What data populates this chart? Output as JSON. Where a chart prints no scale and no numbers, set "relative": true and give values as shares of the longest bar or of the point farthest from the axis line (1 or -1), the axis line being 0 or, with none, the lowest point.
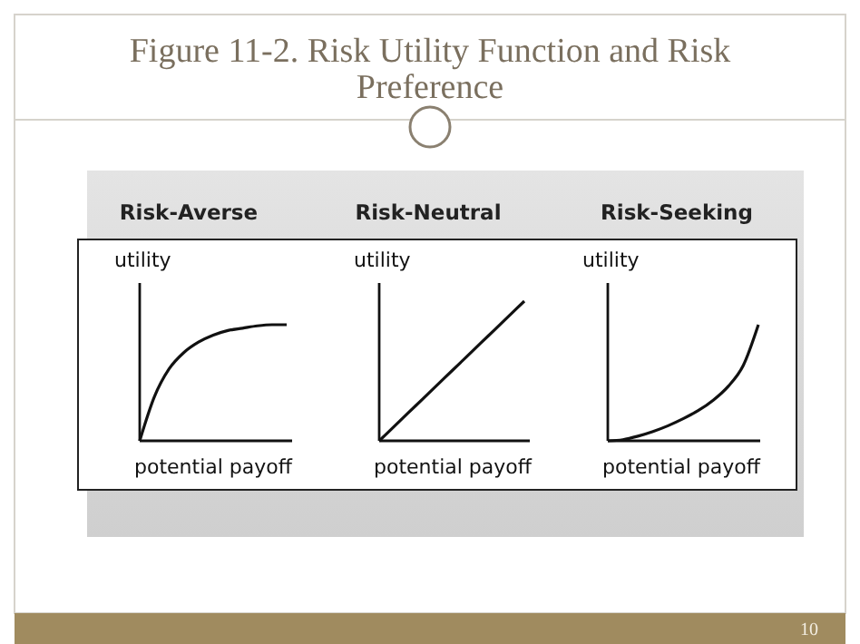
{
  "chart_data": [
    {
      "type": "line",
      "relative": true,
      "title": "Risk-Averse",
      "xlabel": "potential payoff",
      "ylabel": "utility",
      "categories": [
        null,
        null,
        null,
        null,
        null,
        null,
        null,
        null,
        null,
        null,
        null
      ],
      "series": [
        {
          "color": "#111111",
          "values": [
            0,
            0.38,
            0.62,
            0.76,
            0.85,
            0.91,
            0.95,
            0.97,
            0.99,
            1,
            1
          ]
        }
      ],
      "annotations": [
        "Figure 11-2. Risk Utility Function and Risk Preference",
        "10"
      ]
    },
    {
      "type": "line",
      "relative": true,
      "title": "Risk-Neutral",
      "xlabel": "potential payoff",
      "ylabel": "utility",
      "categories": [
        null,
        null,
        null,
        null,
        null,
        null,
        null,
        null,
        null,
        null,
        null
      ],
      "series": [
        {
          "color": "#111111",
          "values": [
            0,
            0.1,
            0.2,
            0.3,
            0.4,
            0.5,
            0.6,
            0.7,
            0.8,
            0.9,
            1
          ]
        }
      ]
    },
    {
      "type": "line",
      "relative": true,
      "title": "Risk-Seeking",
      "xlabel": "potential payoff",
      "ylabel": "utility",
      "categories": [
        null,
        null,
        null,
        null,
        null,
        null,
        null,
        null,
        null,
        null,
        null
      ],
      "series": [
        {
          "color": "#111111",
          "values": [
            0,
            0.01,
            0.04,
            0.08,
            0.13,
            0.19,
            0.26,
            0.35,
            0.47,
            0.65,
            1
          ]
        }
      ]
    }
  ]
}
